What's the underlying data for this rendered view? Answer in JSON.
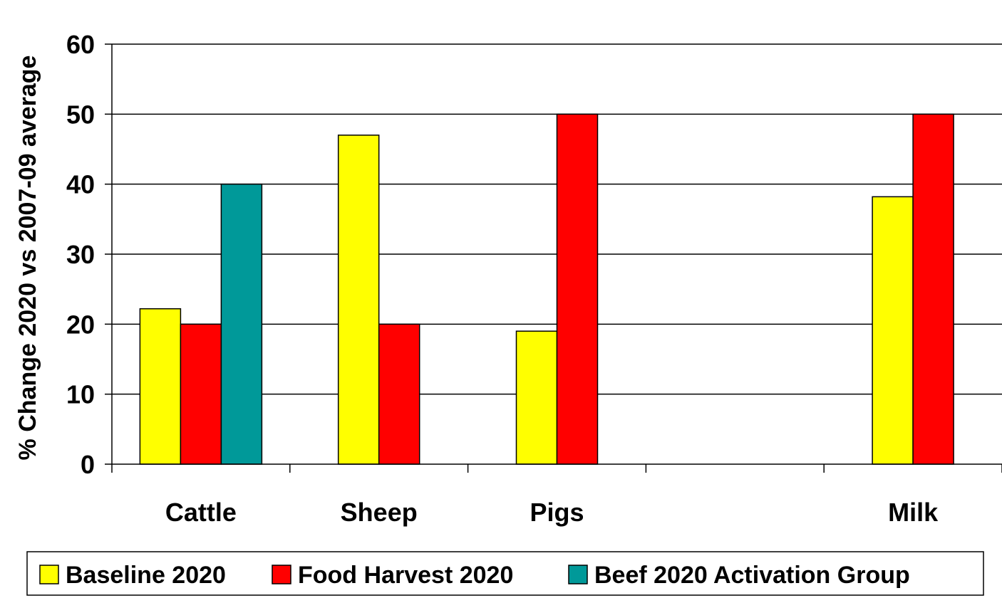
{
  "chart_data": {
    "type": "bar",
    "title": "",
    "xlabel": "",
    "ylabel": "% Change 2020 vs 2007-09 average",
    "ylim": [
      0,
      60
    ],
    "yticks": [
      0,
      10,
      20,
      30,
      40,
      50,
      60
    ],
    "grid": true,
    "legend_position": "bottom",
    "categories": [
      "Cattle",
      "Sheep",
      "Pigs",
      "",
      "Milk"
    ],
    "series": [
      {
        "name": "Baseline 2020",
        "color": "#FFFF00",
        "values": [
          22.2,
          47,
          19,
          null,
          38.2
        ]
      },
      {
        "name": "Food Harvest 2020",
        "color": "#FF0000",
        "values": [
          20,
          20,
          50,
          null,
          50
        ]
      },
      {
        "name": "Beef 2020 Activation Group",
        "color": "#009999",
        "values": [
          40,
          null,
          null,
          null,
          null
        ]
      }
    ]
  }
}
